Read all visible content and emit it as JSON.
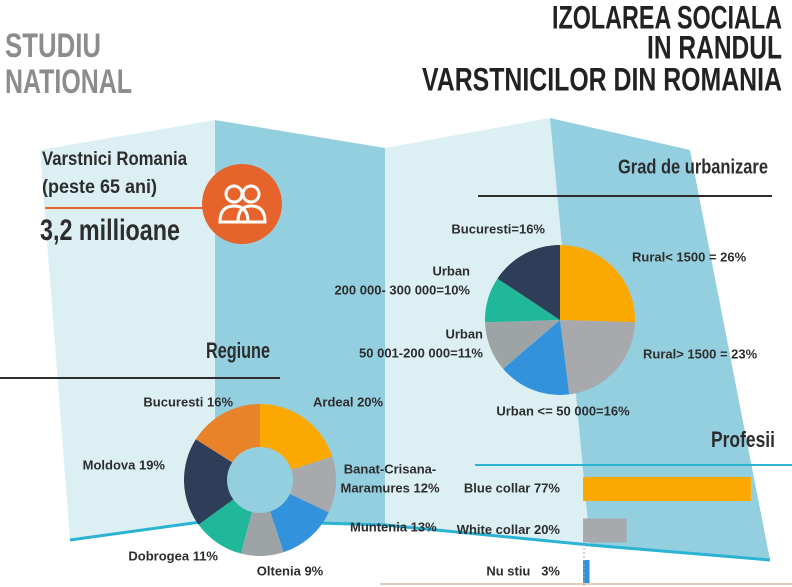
{
  "header": {
    "left": [
      "STUDIU",
      "NATIONAL"
    ],
    "right": [
      "IZOLAREA SOCIALA",
      "IN RANDUL",
      "VARSTNICILOR DIN ROMANIA"
    ]
  },
  "stat": {
    "lines": [
      "Varstnici Romania",
      "(peste 65 ani)"
    ],
    "value": "3,2 millioane"
  },
  "chart_data": [
    {
      "type": "pie",
      "title": "Grad de urbanizare",
      "categories": [
        [
          "Rural< 1500 = 26%"
        ],
        [
          "Rural> 1500 = 23%"
        ],
        [
          "Urban <= 50 000=16%"
        ],
        [
          "Urban",
          "50 001-200 000=11%"
        ],
        [
          "Urban",
          "200 000- 300 000=10%"
        ],
        [
          "Bucuresti=16%"
        ]
      ],
      "values": [
        26,
        23,
        16,
        11,
        10,
        16
      ],
      "colors": [
        "#fba900",
        "#a7a9ac",
        "#3293dc",
        "#9ea3a6",
        "#1fb89a",
        "#2f3e58"
      ]
    },
    {
      "type": "donut",
      "title": "Regiune",
      "categories": [
        [
          "Ardeal 20%"
        ],
        [
          "Banat-Crisana-",
          "Maramures 12%"
        ],
        [
          "Muntenia 13%"
        ],
        [
          "Oltenia 9%"
        ],
        [
          "Dobrogea 11%"
        ],
        [
          "Moldova 19%"
        ],
        [
          "Bucuresti 16%"
        ]
      ],
      "values": [
        20,
        12,
        13,
        9,
        11,
        19,
        16
      ],
      "colors": [
        "#fba900",
        "#a7a9ac",
        "#3293dc",
        "#9ea3a6",
        "#1fb89a",
        "#2f3e58",
        "#e8832a"
      ]
    },
    {
      "type": "hbar",
      "title": "Profesii",
      "categories": [
        "Blue collar 77%",
        "White collar 20%",
        "Nu stiu   3%"
      ],
      "values": [
        77,
        20,
        3
      ],
      "colors": [
        "#fba900",
        "#a7a9ac",
        "#3293dc"
      ],
      "xlim": [
        0,
        100
      ]
    }
  ]
}
